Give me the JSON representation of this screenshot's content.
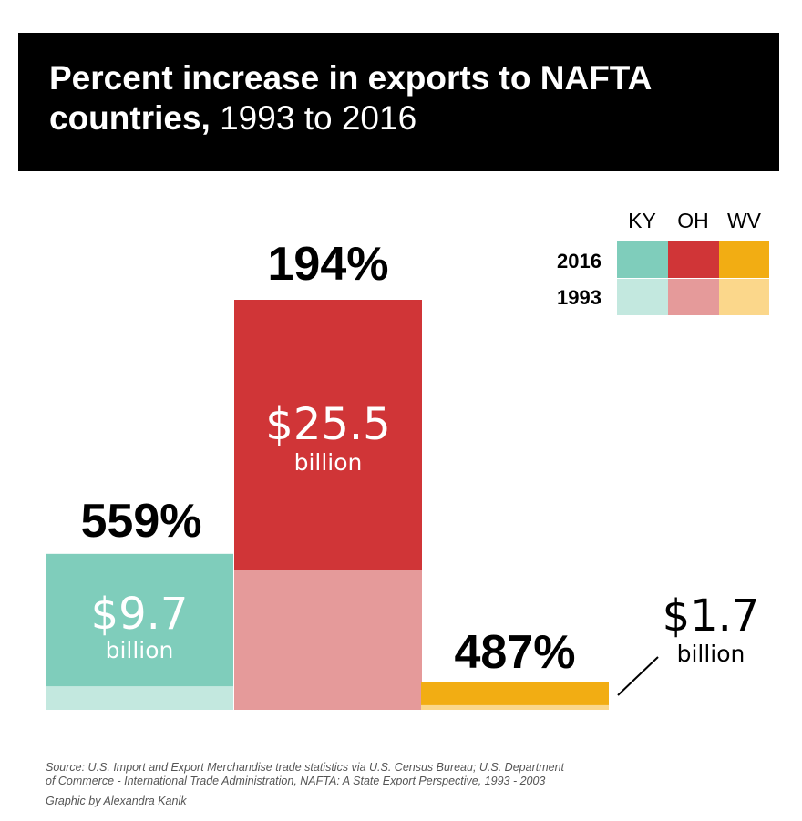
{
  "header": {
    "title_bold_1": "Percent increase in exports to NAFTA",
    "title_bold_2": "countries,",
    "title_light": " 1993 to 2016"
  },
  "legend": {
    "states": [
      "KY",
      "OH",
      "WV"
    ],
    "years": [
      "2016",
      "1993"
    ]
  },
  "chart_data": {
    "type": "bar",
    "title": "Percent increase in exports to NAFTA countries, 1993 to 2016",
    "units": "billion",
    "categories": [
      "KY",
      "OH",
      "WV"
    ],
    "series": [
      {
        "name": "2016",
        "values": [
          9.7,
          25.5,
          1.7
        ]
      },
      {
        "name": "1993",
        "values": [
          1.47,
          8.68,
          0.29
        ]
      }
    ],
    "pct_increase": [
      "559%",
      "194%",
      "487%"
    ],
    "value_labels": [
      "$9.7",
      "$25.5",
      "$1.7"
    ],
    "unit_label": "billion",
    "colors": {
      "KY": {
        "2016": "#7fcdbb",
        "1993": "#c3e8df"
      },
      "OH": {
        "2016": "#d03537",
        "1993": "#e59a9a"
      },
      "WV": {
        "2016": "#f2ad13",
        "1993": "#fbd78b"
      }
    }
  },
  "footer": {
    "source_line_1": "Source: U.S. Import and Export Merchandise trade statistics via U.S. Census Bureau; U.S. Department",
    "source_line_2": "of Commerce - International Trade Administration, NAFTA: A State Export Perspective, 1993 - 2003",
    "credit": "Graphic by Alexandra Kanik"
  }
}
